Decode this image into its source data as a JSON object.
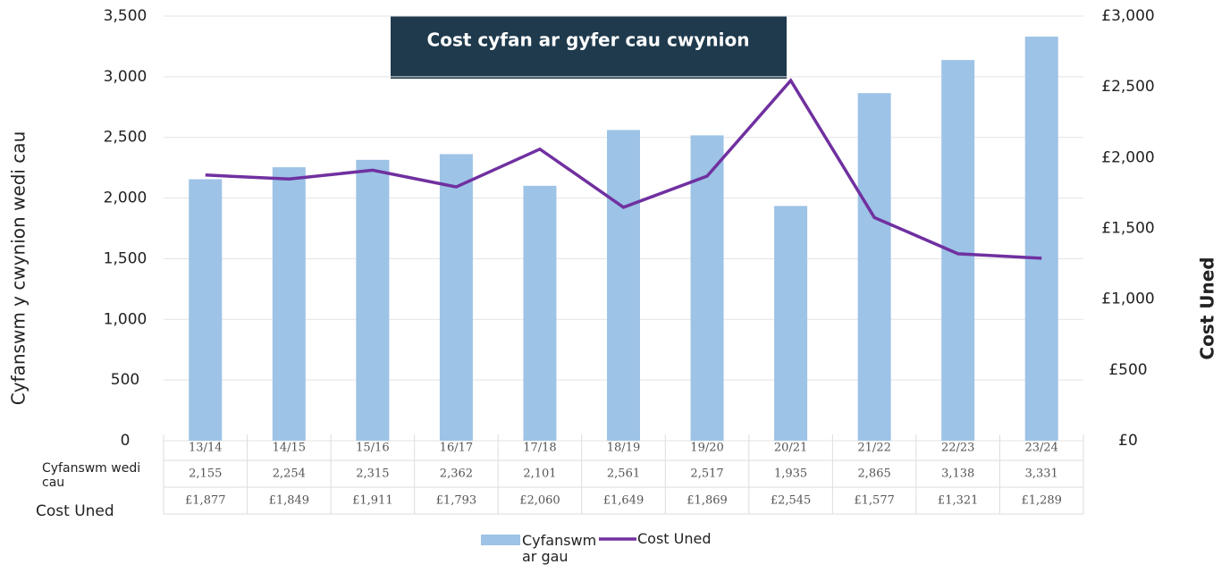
{
  "chart_data": {
    "type": "bar",
    "annotation": "Cost cyfan ar gyfer cau cwynion",
    "y_label": "Cyfanswm y cwynion wedi cau",
    "y2_label": "Cost Uned",
    "categories": [
      "13/14",
      "14/15",
      "15/16",
      "16/17",
      "17/18",
      "18/19",
      "19/20",
      "20/21",
      "21/22",
      "22/23",
      "23/24"
    ],
    "series": [
      {
        "name": "Cyfanswm ar gau",
        "table_label": "Cyfanswm wedi cau",
        "type": "bar",
        "color": "#9dc3e6",
        "values": [
          2155,
          2254,
          2315,
          2362,
          2101,
          2561,
          2517,
          1935,
          2865,
          3138,
          3331
        ],
        "value_labels": [
          "2,155",
          "2,254",
          "2,315",
          "2,362",
          "2,101",
          "2,561",
          "2,517",
          "1,935",
          "2,865",
          "3,138",
          "3,331"
        ]
      },
      {
        "name": "Cost Uned",
        "table_label": "Cost Uned",
        "type": "line",
        "axis": "y2",
        "color": "#7030a0",
        "values": [
          1877,
          1849,
          1911,
          1793,
          2060,
          1649,
          1869,
          2545,
          1577,
          1321,
          1289
        ],
        "value_labels": [
          "£1,877",
          "£1,849",
          "£1,911",
          "£1,793",
          "£2,060",
          "£1,649",
          "£1,869",
          "£2,545",
          "£1,577",
          "£1,321",
          "£1,289"
        ]
      }
    ],
    "ylim": [
      0,
      3500
    ],
    "yticks": [
      0,
      500,
      {
        "value": 1000,
        "label": "1,000"
      },
      {
        "value": 1500,
        "label": "1,500"
      },
      {
        "value": 2000,
        "label": "2,000"
      },
      {
        "value": 2500,
        "label": "2,500"
      },
      {
        "value": 3000,
        "label": "3,000"
      },
      {
        "value": 3500,
        "label": "3,500"
      }
    ],
    "y2lim": [
      0,
      3000
    ],
    "y2ticks": [
      {
        "value": 0,
        "label": "£0"
      },
      {
        "value": 500,
        "label": "£500"
      },
      {
        "value": 1000,
        "label": "£1,000"
      },
      {
        "value": 1500,
        "label": "£1,500"
      },
      {
        "value": 2000,
        "label": "£2,000"
      },
      {
        "value": 2500,
        "label": "£2,500"
      },
      {
        "value": 3000,
        "label": "£3,000"
      }
    ],
    "grid": true
  }
}
